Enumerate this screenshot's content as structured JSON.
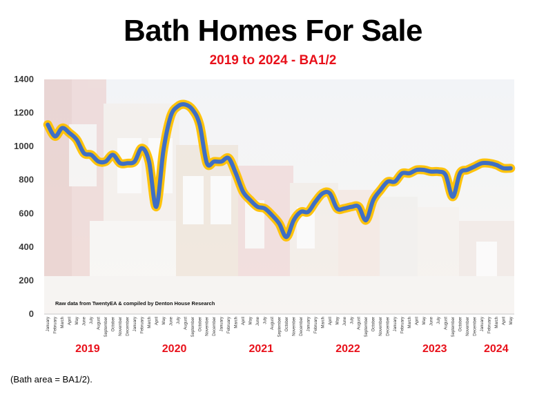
{
  "title": "Bath Homes For Sale",
  "subtitle": "2019 to 2024 - BA1/2",
  "footnote": "(Bath area = BA1/2).",
  "credit": "Raw data from TwentyEA & compiled by Denton House Research",
  "chart_data": {
    "type": "line",
    "title": "Bath Homes For Sale",
    "subtitle": "2019 to 2024 - BA1/2",
    "ylim": [
      0,
      1400
    ],
    "yticks": [
      0,
      200,
      400,
      600,
      800,
      1000,
      1200,
      1400
    ],
    "grid": false,
    "months": [
      "January",
      "February",
      "March",
      "April",
      "May",
      "June",
      "July",
      "August",
      "September",
      "October",
      "November",
      "December"
    ],
    "years": [
      "2019",
      "2020",
      "2021",
      "2022",
      "2023",
      "2024"
    ],
    "line_color": "#3f6fc4",
    "glow_color": "#ffc000",
    "series": [
      {
        "x": [
          "January 2019",
          "February 2019",
          "March 2019",
          "April 2019",
          "May 2019",
          "June 2019",
          "July 2019",
          "August 2019",
          "September 2019",
          "October 2019",
          "November 2019",
          "December 2019",
          "January 2020",
          "February 2020",
          "March 2020",
          "April 2020",
          "May 2020",
          "June 2020",
          "July 2020",
          "August 2020",
          "September 2020",
          "October 2020",
          "November 2020",
          "December 2020",
          "January 2021",
          "February 2021",
          "March 2021",
          "April 2021",
          "May 2021",
          "June 2021",
          "July 2021",
          "August 2021",
          "September 2021",
          "October 2021",
          "November 2021",
          "December 2021",
          "January 2022",
          "February 2022",
          "March 2022",
          "April 2022",
          "May 2022",
          "June 2022",
          "July 2022",
          "August 2022",
          "September 2022",
          "October 2022",
          "November 2022",
          "December 2022",
          "January 2023",
          "February 2023",
          "March 2023",
          "April 2023",
          "May 2023",
          "June 2023",
          "July 2023",
          "August 2023",
          "September 2023",
          "October 2023",
          "November 2023",
          "December 2023",
          "January 2024",
          "February 2024",
          "March 2024",
          "April 2024",
          "May 2024"
        ],
        "values": [
          1130,
          1060,
          1110,
          1080,
          1040,
          960,
          950,
          910,
          910,
          950,
          900,
          900,
          910,
          990,
          910,
          640,
          980,
          1180,
          1240,
          1250,
          1220,
          1130,
          900,
          910,
          910,
          930,
          840,
          730,
          680,
          640,
          630,
          590,
          540,
          460,
          560,
          610,
          610,
          670,
          720,
          720,
          630,
          630,
          640,
          640,
          560,
          680,
          740,
          790,
          790,
          840,
          840,
          860,
          860,
          850,
          850,
          830,
          700,
          840,
          860,
          880,
          900,
          900,
          890,
          870,
          870
        ]
      }
    ]
  }
}
